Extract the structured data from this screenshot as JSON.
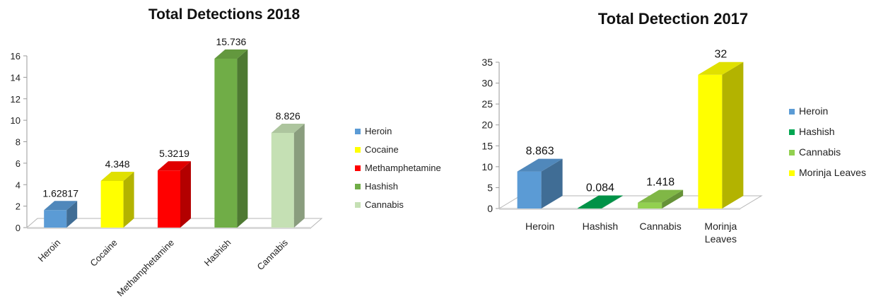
{
  "chart_data": [
    {
      "type": "bar",
      "title": "Total Detections 2018",
      "categories": [
        "Heroin",
        "Cocaine",
        "Methamphetamine",
        "Hashish",
        "Cannabis"
      ],
      "values": [
        1.62817,
        4.348,
        5.3219,
        15.736,
        8.826
      ],
      "data_labels": [
        "1.62817",
        "4.348",
        "5.3219",
        "15.736",
        "8.826"
      ],
      "colors": [
        "#5b9bd5",
        "#ffff00",
        "#ff0000",
        "#70ad47",
        "#c5e0b4"
      ],
      "ylim": [
        0,
        16
      ],
      "yticks": [
        0,
        2,
        4,
        6,
        8,
        10,
        12,
        14,
        16
      ],
      "legend": [
        "Heroin",
        "Cocaine",
        "Methamphetamine",
        "Hashish",
        "Cannabis"
      ],
      "legend_position": "right",
      "grid": false,
      "xlabel": "",
      "ylabel": ""
    },
    {
      "type": "bar",
      "title": "Total Detection 2017",
      "categories": [
        "Heroin",
        "Hashish",
        "Cannabis",
        "Morinja Leaves"
      ],
      "values": [
        8.863,
        0.084,
        1.418,
        32
      ],
      "data_labels": [
        "8.863",
        "0.084",
        "1.418",
        "32"
      ],
      "colors": [
        "#5b9bd5",
        "#00a651",
        "#92d050",
        "#ffff00"
      ],
      "ylim": [
        0,
        35
      ],
      "yticks": [
        0,
        5,
        10,
        15,
        20,
        25,
        30,
        35
      ],
      "legend": [
        "Heroin",
        "Hashish",
        "Cannabis",
        "Morinja Leaves"
      ],
      "legend_position": "right",
      "grid": false,
      "xlabel": "",
      "ylabel": ""
    }
  ]
}
